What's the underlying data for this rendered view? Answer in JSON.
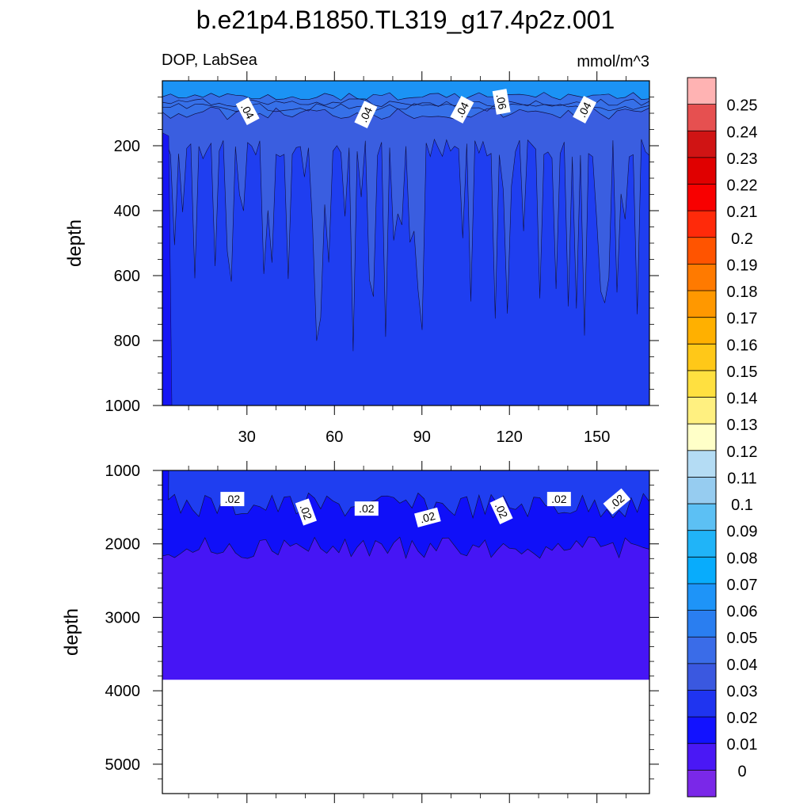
{
  "figure": {
    "title": "b.e21p4.B1850.TL319_g17.4p2z.001",
    "variable_label": "DOP, LabSea",
    "units_label": "mmol/m^3"
  },
  "chart_data": [
    {
      "type": "heatmap",
      "panel": "upper",
      "title": "",
      "xlabel": "",
      "ylabel": "depth",
      "xlim": [
        1,
        168
      ],
      "ylim": [
        1000,
        0
      ],
      "x_ticks": [
        30,
        60,
        90,
        120,
        150
      ],
      "y_ticks": [
        200,
        400,
        600,
        800,
        1000
      ],
      "contour_labels": [
        {
          "text": ".04",
          "x": 30,
          "depth": 95,
          "angle": 62
        },
        {
          "text": ".04",
          "x": 71,
          "depth": 105,
          "angle": -65
        },
        {
          "text": ".04",
          "x": 104,
          "depth": 90,
          "angle": -62
        },
        {
          "text": ".06",
          "x": 117,
          "depth": 65,
          "angle": 80
        },
        {
          "text": ".04",
          "x": 146,
          "depth": 90,
          "angle": -62
        }
      ],
      "layers": [
        {
          "range": "0.05-0.07",
          "depth_top": 0,
          "depth_bottom": 45,
          "color": "#1b93f5"
        },
        {
          "range": "0.04-0.05",
          "depth_top": 45,
          "depth_bottom": 90,
          "color": "#3670e8"
        },
        {
          "range": "0.03-0.04",
          "depth_top": 90,
          "depth_bottom": 400,
          "color": "#3a5ee0"
        },
        {
          "range": "0.02-0.03",
          "depth_top": 160,
          "depth_bottom": 1000,
          "color": "#1f3ef0"
        }
      ]
    },
    {
      "type": "heatmap",
      "panel": "lower",
      "title": "",
      "xlabel": "",
      "ylabel": "depth",
      "xlim": [
        1,
        168
      ],
      "ylim": [
        5400,
        1000
      ],
      "y_ticks": [
        1000,
        2000,
        3000,
        4000,
        5000
      ],
      "contour_labels": [
        {
          "text": ".02",
          "x": 25,
          "depth": 1400,
          "angle": 0
        },
        {
          "text": ".02",
          "x": 50,
          "depth": 1570,
          "angle": 70
        },
        {
          "text": ".02",
          "x": 71,
          "depth": 1530,
          "angle": 0
        },
        {
          "text": ".02",
          "x": 92,
          "depth": 1650,
          "angle": -15
        },
        {
          "text": ".02",
          "x": 117,
          "depth": 1550,
          "angle": 65
        },
        {
          "text": ".02",
          "x": 137,
          "depth": 1400,
          "angle": 0
        },
        {
          "text": ".02",
          "x": 157,
          "depth": 1430,
          "angle": -40
        }
      ],
      "layers": [
        {
          "range": "0.02-0.03",
          "depth_top": 1000,
          "depth_bottom": 1450,
          "color": "#1f3ef0"
        },
        {
          "range": "0.01-0.02",
          "depth_top": 1450,
          "depth_bottom": 2000,
          "color": "#1010f8"
        },
        {
          "range": "0-0.01",
          "depth_top": 2000,
          "depth_bottom": 3850,
          "color": "#4615f5"
        }
      ],
      "missing_below_depth": 3850
    }
  ],
  "colorbar": {
    "levels": [
      "0.25",
      "0.24",
      "0.23",
      "0.22",
      "0.21",
      "0.2",
      "0.19",
      "0.18",
      "0.17",
      "0.16",
      "0.15",
      "0.14",
      "0.13",
      "0.12",
      "0.11",
      "0.1",
      "0.09",
      "0.08",
      "0.07",
      "0.06",
      "0.05",
      "0.04",
      "0.03",
      "0.02",
      "0.01",
      "0"
    ],
    "colors": [
      "#ffb3b3",
      "#e65050",
      "#d01414",
      "#e00000",
      "#f80000",
      "#ff2a0a",
      "#ff5400",
      "#ff7a00",
      "#ff9800",
      "#ffb000",
      "#ffc818",
      "#ffe040",
      "#fff080",
      "#ffffc8",
      "#b4dcf4",
      "#96ccf0",
      "#5cc0f4",
      "#20b4f8",
      "#08acfc",
      "#1e94f8",
      "#2a7ef0",
      "#3a6ce8",
      "#3a58e0",
      "#1f34f0",
      "#1212ff",
      "#4a18f5",
      "#7a28e8"
    ]
  }
}
